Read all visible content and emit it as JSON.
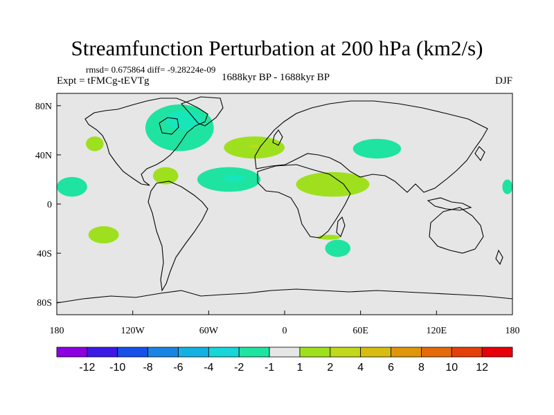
{
  "title": "Streamfunction Perturbation at 200 hPa (km2/s)",
  "stats": "rmsd= 0.675864 diff= -9.28224e-09",
  "experiment": "Expt = tFMCg-tEVTg",
  "period": "1688kyr BP - 1688kyr BP",
  "season": "DJF",
  "colors": {
    "land_outline": "#000000",
    "background": "#e6e6e6",
    "neg2": "#1fe3a1",
    "neg1": "#17e6bb",
    "pos1": "#9fe01e",
    "pos2": "#c1d81b"
  },
  "chart_data": {
    "type": "heatmap",
    "projection": "cylindrical-equidistant",
    "xlim": [
      -180,
      180
    ],
    "ylim": [
      -90,
      90
    ],
    "x_ticks": [
      {
        "value": -180,
        "label": "180"
      },
      {
        "value": -120,
        "label": "120W"
      },
      {
        "value": -60,
        "label": "60W"
      },
      {
        "value": 0,
        "label": "0"
      },
      {
        "value": 60,
        "label": "60E"
      },
      {
        "value": 120,
        "label": "120E"
      },
      {
        "value": 180,
        "label": "180"
      }
    ],
    "y_ticks": [
      {
        "value": 80,
        "label": "80N"
      },
      {
        "value": 40,
        "label": "40N"
      },
      {
        "value": 0,
        "label": "0"
      },
      {
        "value": -40,
        "label": "40S"
      },
      {
        "value": -80,
        "label": "80S"
      }
    ],
    "colorbar": {
      "levels": [
        "-12",
        "-10",
        "-8",
        "-6",
        "-4",
        "-2",
        "-1",
        "1",
        "2",
        "4",
        "6",
        "8",
        "10",
        "12"
      ],
      "colors": [
        "#8a00e0",
        "#3c19e6",
        "#1650e8",
        "#1a84e5",
        "#14b2e3",
        "#17d6d8",
        "#1fe3a1",
        "#e6e6e6",
        "#9fe01e",
        "#c1d81b",
        "#d8bd10",
        "#e0960a",
        "#e46a0a",
        "#e6400a",
        "#e6000a"
      ]
    },
    "anomalies": [
      {
        "name": "north-america-low",
        "lon": -83,
        "lat": 62,
        "rlon": 27,
        "rlat": 19,
        "value_class": "neg2"
      },
      {
        "name": "north-atlantic-low",
        "lon": -80,
        "lat": 68,
        "rlon": 14,
        "rlat": 8,
        "value_class": "neg1"
      },
      {
        "name": "north-pacific-high",
        "lon": -150,
        "lat": 49,
        "rlon": 7,
        "rlat": 6,
        "value_class": "pos1"
      },
      {
        "name": "north-atlantic-high",
        "lon": -24,
        "lat": 46,
        "rlon": 24,
        "rlat": 9,
        "value_class": "pos1"
      },
      {
        "name": "north-atlantic-high-core",
        "lon": -24,
        "lat": 47,
        "rlon": 4,
        "rlat": 1,
        "value_class": "pos2"
      },
      {
        "name": "central-asia-low",
        "lon": 73,
        "lat": 45,
        "rlon": 19,
        "rlat": 8,
        "value_class": "neg2"
      },
      {
        "name": "tropical-atlantic-low",
        "lon": -44,
        "lat": 20,
        "rlon": 25,
        "rlat": 10,
        "value_class": "neg2"
      },
      {
        "name": "tropical-atlantic-low-core",
        "lon": -40,
        "lat": 21,
        "rlon": 8,
        "rlat": 3,
        "value_class": "neg1"
      },
      {
        "name": "caribbean-high",
        "lon": -94,
        "lat": 23,
        "rlon": 10,
        "rlat": 7,
        "value_class": "pos1"
      },
      {
        "name": "africa-arabia-high",
        "lon": 38,
        "lat": 16,
        "rlon": 29,
        "rlat": 10,
        "value_class": "pos1"
      },
      {
        "name": "east-pacific-low",
        "lon": -168,
        "lat": 14,
        "rlon": 12,
        "rlat": 8,
        "value_class": "neg2"
      },
      {
        "name": "date-line-low",
        "lon": 176,
        "lat": 14,
        "rlon": 4,
        "rlat": 6,
        "value_class": "neg2"
      },
      {
        "name": "south-pacific-high",
        "lon": -143,
        "lat": -25,
        "rlon": 12,
        "rlat": 7,
        "value_class": "pos1"
      },
      {
        "name": "southern-africa-low",
        "lon": 42,
        "lat": -36,
        "rlon": 10,
        "rlat": 7,
        "value_class": "neg2"
      },
      {
        "name": "south-africa-high",
        "lon": 35,
        "lat": -27,
        "rlon": 9,
        "rlat": 2,
        "value_class": "pos1"
      }
    ]
  }
}
